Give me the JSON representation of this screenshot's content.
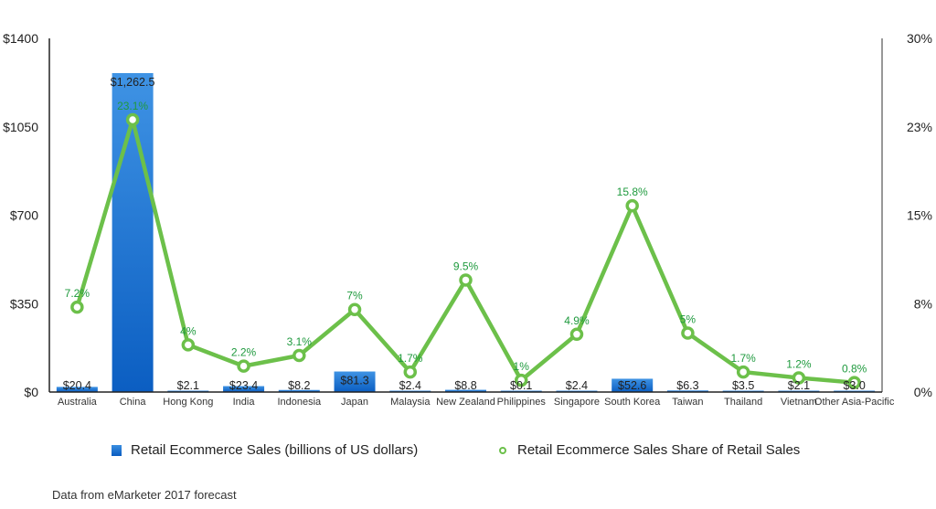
{
  "chart_data": {
    "type": "bar",
    "title": "",
    "xlabel": "",
    "categories": [
      "Australia",
      "China",
      "Hong Kong",
      "India",
      "Indonesia",
      "Japan",
      "Malaysia",
      "New Zealand",
      "Philippines",
      "Singapore",
      "South Korea",
      "Taiwan",
      "Thailand",
      "Vietnam",
      "Other Asia-Pacific"
    ],
    "series": [
      {
        "name": "Retail Ecommerce Sales (billions of US dollars)",
        "type": "bar",
        "axis": "left",
        "color": "#1a6fd4",
        "values": [
          20.4,
          1262.5,
          2.1,
          23.4,
          8.2,
          81.3,
          2.4,
          8.8,
          0.1,
          2.4,
          52.6,
          6.3,
          3.5,
          2.1,
          3.0
        ],
        "labels": [
          "$20.4",
          "$1,262.5",
          "$2.1",
          "$23.4",
          "$8.2",
          "$81.3",
          "$2.4",
          "$8.8",
          "$0.1",
          "$2.4",
          "$52.6",
          "$6.3",
          "$3.5",
          "$2.1",
          "$3.0"
        ]
      },
      {
        "name": "Retail Ecommerce Sales Share of Retail Sales",
        "type": "line",
        "axis": "right",
        "color": "#6cc04a",
        "label_color": "#1f9a3e",
        "values": [
          7.2,
          23.1,
          4.0,
          2.2,
          3.1,
          7.0,
          1.7,
          9.5,
          1.0,
          4.9,
          15.8,
          5.0,
          1.7,
          1.2,
          0.8
        ],
        "labels": [
          "7.2%",
          "23.1%",
          "4%",
          "2.2%",
          "3.1%",
          "7%",
          "1.7%",
          "9.5%",
          "1%",
          "4.9%",
          "15.8%",
          "5%",
          "1.7%",
          "1.2%",
          "0.8%"
        ]
      }
    ],
    "y_left": {
      "ylim": [
        0,
        1400
      ],
      "ticks": [
        0,
        350,
        700,
        1050,
        1400
      ],
      "tick_labels": [
        "$0",
        "$350",
        "$700",
        "$1050",
        "$1400"
      ]
    },
    "y_right": {
      "ylim": [
        0,
        30
      ],
      "ticks": [
        0,
        7.5,
        15,
        22.5,
        30
      ],
      "tick_labels": [
        "0%",
        "8%",
        "15%",
        "23%",
        "30%"
      ]
    },
    "grid": false,
    "legend_position": "bottom"
  },
  "legend": {
    "bar_label": "Retail Ecommerce Sales (billions of US dollars)",
    "line_label": "Retail Ecommerce Sales Share of Retail Sales"
  },
  "source_note": "Data from eMarketer 2017 forecast"
}
